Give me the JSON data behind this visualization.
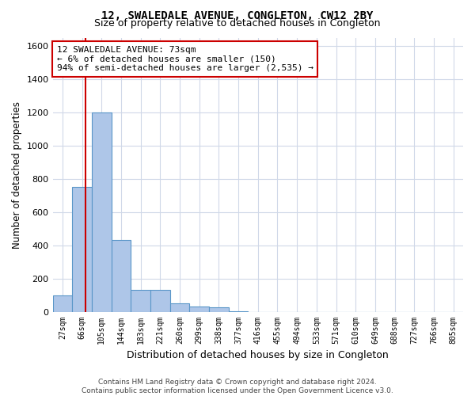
{
  "title": "12, SWALEDALE AVENUE, CONGLETON, CW12 2BY",
  "subtitle": "Size of property relative to detached houses in Congleton",
  "xlabel": "Distribution of detached houses by size in Congleton",
  "ylabel": "Number of detached properties",
  "categories": [
    "27sqm",
    "66sqm",
    "105sqm",
    "144sqm",
    "183sqm",
    "221sqm",
    "260sqm",
    "299sqm",
    "338sqm",
    "377sqm",
    "416sqm",
    "455sqm",
    "494sqm",
    "533sqm",
    "571sqm",
    "610sqm",
    "649sqm",
    "688sqm",
    "727sqm",
    "766sqm",
    "805sqm"
  ],
  "values": [
    100,
    750,
    1200,
    430,
    130,
    130,
    50,
    30,
    25,
    5,
    0,
    0,
    0,
    0,
    0,
    0,
    0,
    0,
    0,
    0,
    0
  ],
  "bar_color": "#aec6e8",
  "bar_edge_color": "#5a96c8",
  "annotation_line1": "12 SWALEDALE AVENUE: 73sqm",
  "annotation_line2": "← 6% of detached houses are smaller (150)",
  "annotation_line3": "94% of semi-detached houses are larger (2,535) →",
  "annotation_box_color": "#ffffff",
  "annotation_box_edge_color": "#cc0000",
  "vline_color": "#cc0000",
  "vline_x_index": 1.18,
  "ylim": [
    0,
    1650
  ],
  "yticks": [
    0,
    200,
    400,
    600,
    800,
    1000,
    1200,
    1400,
    1600
  ],
  "background_color": "#ffffff",
  "grid_color": "#d0d8e8",
  "footer": "Contains HM Land Registry data © Crown copyright and database right 2024.\nContains public sector information licensed under the Open Government Licence v3.0.",
  "title_fontsize": 10,
  "subtitle_fontsize": 9,
  "xlabel_fontsize": 9,
  "ylabel_fontsize": 8.5,
  "annot_fontsize": 8,
  "tick_fontsize": 7
}
